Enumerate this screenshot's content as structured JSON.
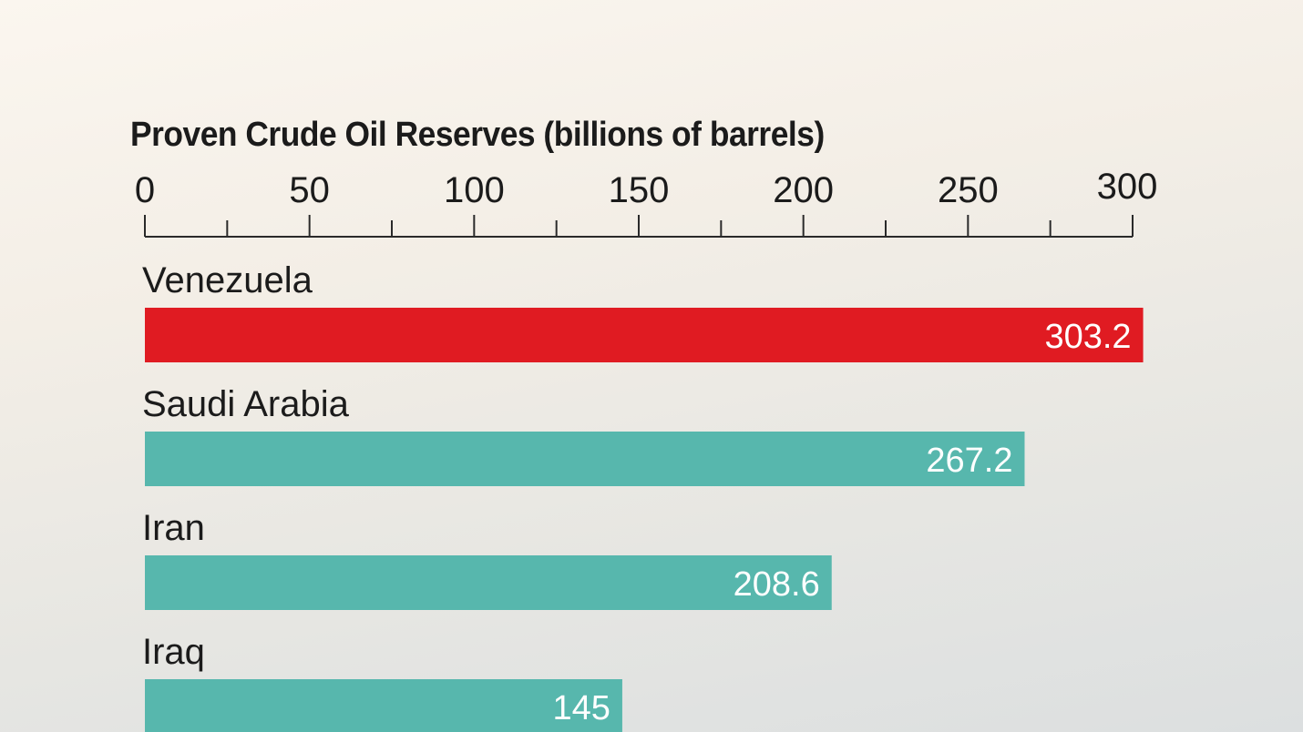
{
  "chart_data": {
    "type": "bar",
    "orientation": "horizontal",
    "title": "Proven Crude Oil Reserves (billions of barrels)",
    "xlim": [
      0,
      300
    ],
    "xticks": [
      0,
      50,
      100,
      150,
      200,
      250,
      300
    ],
    "tick_labels": [
      "0",
      "50",
      "100",
      "150",
      "200",
      "250",
      "300"
    ],
    "categories": [
      "Venezuela",
      "Saudi Arabia",
      "Iran",
      "Iraq"
    ],
    "values": [
      303.2,
      267.2,
      208.6,
      145
    ],
    "value_labels": [
      "303.2",
      "267.2",
      "208.6",
      "145"
    ],
    "colors": [
      "#e01b22",
      "#57b7ad",
      "#57b7ad",
      "#57b7ad"
    ],
    "grid": false,
    "legend": "none"
  }
}
